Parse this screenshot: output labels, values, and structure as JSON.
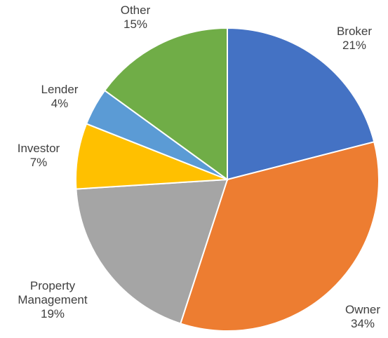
{
  "chart_data": {
    "type": "pie",
    "categories": [
      "Broker",
      "Owner",
      "Property Management",
      "Investor",
      "Lender",
      "Other"
    ],
    "values": [
      21,
      34,
      19,
      7,
      4,
      15
    ],
    "value_labels": [
      "21%",
      "34%",
      "19%",
      "7%",
      "4%",
      "15%"
    ],
    "colors": [
      "#4472c4",
      "#ed7d31",
      "#a5a5a5",
      "#ffc000",
      "#5b9bd5",
      "#70ad47"
    ]
  }
}
